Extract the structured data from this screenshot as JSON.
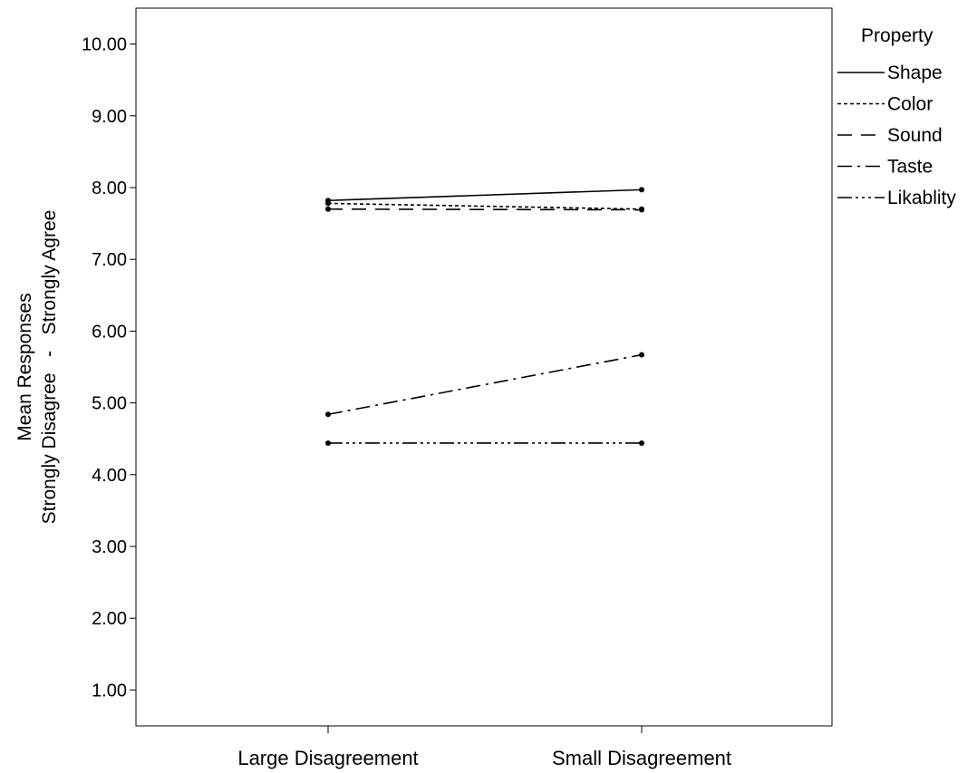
{
  "chart_data": {
    "type": "line",
    "title": "",
    "xlabel": "",
    "ylabel_lines": [
      "Mean Responses",
      "Strongly Disagree   -   Strongly Agree"
    ],
    "categories": [
      "Large Disagreement",
      "Small Disagreement"
    ],
    "ylim": [
      0.5,
      10.5
    ],
    "yticks": [
      "1.00",
      "2.00",
      "3.00",
      "4.00",
      "5.00",
      "6.00",
      "7.00",
      "8.00",
      "9.00",
      "10.00"
    ],
    "grid": false,
    "legend_title": "Property",
    "legend_position": "right",
    "series": [
      {
        "name": "Shape",
        "values": [
          7.82,
          7.97
        ],
        "dash": "solid"
      },
      {
        "name": "Color",
        "values": [
          7.78,
          7.7
        ],
        "dash": "dotted"
      },
      {
        "name": "Sound",
        "values": [
          7.7,
          7.69
        ],
        "dash": "dashed"
      },
      {
        "name": "Taste",
        "values": [
          4.84,
          5.67
        ],
        "dash": "dashdot"
      },
      {
        "name": "Likablity",
        "values": [
          4.44,
          4.44
        ],
        "dash": "dashdotdotdot"
      }
    ]
  }
}
